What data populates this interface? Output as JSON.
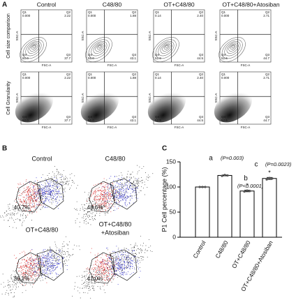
{
  "panel_a": {
    "label": "A",
    "columns": [
      "Control",
      "C48/80",
      "OT+C48/80",
      "OT+C48/80+Atosiban"
    ],
    "rows": [
      {
        "label": "Cell size comparison",
        "plots": [
          [
            "0.000",
            "2.22",
            "37.7",
            "60.0"
          ],
          [
            "0.000",
            "1.88",
            "43.1",
            "55.0"
          ],
          [
            "0.14",
            "2.40",
            "44.5",
            "52.9"
          ],
          [
            "0.000",
            "2.71",
            "44.7",
            "52.6"
          ]
        ]
      },
      {
        "label": "Cell Granularity",
        "plots": [
          [
            "0.000",
            "2.22",
            "37.7",
            "60.0"
          ],
          [
            "0.000",
            "1.88",
            "43.1",
            "55.0"
          ],
          [
            "0.14",
            "2.40",
            "44.5",
            "52.9"
          ],
          [
            "0.000",
            "2.71",
            "44.7",
            "52.6"
          ]
        ]
      }
    ],
    "quadrant_names": [
      "Q1",
      "Q2",
      "Q3",
      "Q4"
    ],
    "x_label": "FSC-A",
    "y_label": "SSC-A"
  },
  "panel_b": {
    "label": "B",
    "plots": [
      {
        "title": [
          "Control"
        ],
        "gate": "40.7%"
      },
      {
        "title": [
          "C48/80"
        ],
        "gate": "48.6%"
      },
      {
        "title": [
          "OT+C48/80"
        ],
        "gate": "36.1%"
      },
      {
        "title": [
          "OT+C48/80",
          "+Atosiban"
        ],
        "gate": "41.0%"
      }
    ]
  },
  "chart_data": {
    "type": "bar",
    "label": "C",
    "ylabel": "P1 Cell percentage (%)",
    "categories": [
      "Control",
      "C48/80",
      "OT+C48/80",
      "OT+C48/80+Atosiban"
    ],
    "values": [
      100,
      123,
      92,
      117
    ],
    "errors": [
      0.5,
      1,
      1.5,
      2
    ],
    "points": [
      [
        100,
        100,
        100
      ],
      [
        122,
        124,
        123
      ],
      [
        91,
        93,
        92
      ],
      [
        115,
        118,
        117
      ]
    ],
    "annotations": [
      null,
      "a",
      "b",
      "c"
    ],
    "p_values": [
      null,
      "(P=0.003)",
      "(P<0.0001)",
      "(P=0.0023)"
    ],
    "stars": [
      null,
      null,
      "*",
      "*"
    ],
    "color": "#ffffff",
    "edge_color": "#000000",
    "point_color": "#555555",
    "ylim": [
      0,
      150
    ],
    "yticks": [
      0,
      50,
      100,
      150
    ]
  }
}
